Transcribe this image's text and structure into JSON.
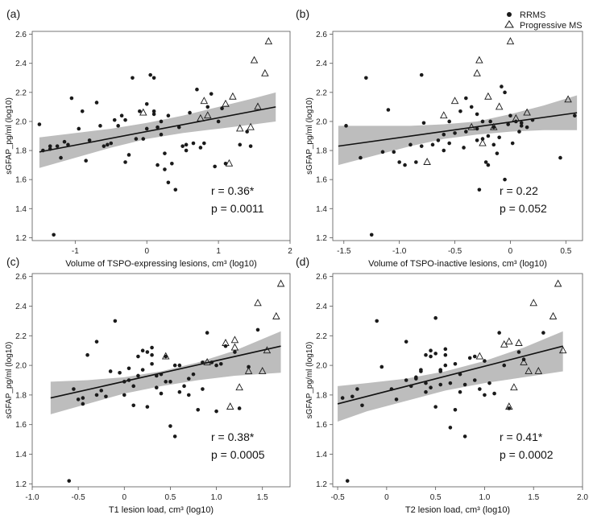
{
  "legend": {
    "position": "top-right",
    "entries": [
      {
        "label": "RRMS",
        "marker": "filled-circle"
      },
      {
        "label": "Progressive MS",
        "marker": "open-triangle"
      }
    ]
  },
  "chart_data": [
    {
      "type": "scatter",
      "panel": "(a)",
      "xlabel": "Volume of TSPO-expressing lesions, cm³ (log10)",
      "ylabel": "sGFAP_pg/ml (log10)",
      "xlim": [
        -1.6,
        2.0
      ],
      "ylim": [
        1.18,
        2.62
      ],
      "xticks": [
        "-1",
        "0",
        "1",
        "2"
      ],
      "xtick_values": [
        -1,
        0,
        1,
        2
      ],
      "yticks": [
        "1.2",
        "1.4",
        "1.6",
        "1.8",
        "2.0",
        "2.2",
        "2.4",
        "2.6"
      ],
      "ytick_values": [
        1.2,
        1.4,
        1.6,
        1.8,
        2.0,
        2.2,
        2.4,
        2.6
      ],
      "fit": {
        "x": [
          -1.5,
          1.8
        ],
        "y": [
          1.79,
          2.1
        ]
      },
      "band": {
        "x": [
          -1.5,
          -1.0,
          -0.5,
          0.0,
          0.5,
          1.0,
          1.5,
          1.8
        ],
        "upper": [
          1.89,
          1.92,
          1.95,
          1.99,
          2.04,
          2.1,
          2.16,
          2.2
        ],
        "lower": [
          1.68,
          1.75,
          1.82,
          1.88,
          1.92,
          1.95,
          1.98,
          2.0
        ]
      },
      "annotation": {
        "r": "r = 0.36*",
        "p": "p = 0.0011"
      },
      "series": [
        {
          "name": "RRMS",
          "marker": "dot",
          "x": [
            -1.5,
            -1.45,
            -1.35,
            -1.3,
            -1.25,
            -1.2,
            -1.15,
            -1.1,
            -1.05,
            -0.95,
            -0.9,
            -0.85,
            -0.8,
            -0.7,
            -0.65,
            -0.6,
            -0.55,
            -0.5,
            -0.45,
            -0.4,
            -0.35,
            -0.3,
            -0.25,
            -0.2,
            -0.15,
            -0.1,
            0.0,
            0.05,
            0.1,
            0.1,
            0.15,
            0.2,
            0.25,
            0.25,
            0.3,
            0.35,
            0.4,
            0.45,
            0.5,
            0.55,
            0.6,
            0.65,
            0.7,
            0.75,
            0.8,
            0.85,
            0.9,
            0.95,
            1.0,
            1.05,
            1.1,
            1.3,
            1.4,
            1.45,
            0.0,
            0.2,
            -0.3,
            0.3,
            0.1,
            -0.05,
            0.55,
            0.15,
            -1.35
          ],
          "y": [
            1.98,
            1.8,
            1.81,
            1.22,
            1.83,
            1.75,
            1.86,
            1.84,
            2.16,
            1.95,
            2.07,
            1.73,
            1.87,
            2.13,
            1.97,
            1.83,
            1.84,
            1.85,
            2.01,
            1.97,
            2.04,
            1.72,
            1.77,
            2.3,
            1.88,
            2.07,
            2.12,
            2.32,
            2.3,
            2.05,
            1.7,
            1.91,
            1.78,
            1.67,
            1.58,
            1.71,
            1.53,
            1.96,
            1.83,
            1.84,
            2.06,
            1.85,
            2.22,
            1.82,
            1.85,
            2.1,
            2.19,
            1.69,
            2.0,
            2.09,
            1.71,
            1.84,
            1.93,
            1.83,
            1.95,
            2.0,
            2.01,
            2.04,
            2.07,
            1.88,
            1.8,
            1.96,
            1.83
          ]
        },
        {
          "name": "Progressive MS",
          "marker": "triangle",
          "x": [
            -0.05,
            0.75,
            0.8,
            0.85,
            1.1,
            1.15,
            1.2,
            1.3,
            1.45,
            1.5,
            1.55,
            1.65,
            1.7
          ],
          "y": [
            2.06,
            2.02,
            2.14,
            2.04,
            2.12,
            1.71,
            2.17,
            1.95,
            1.96,
            2.42,
            2.1,
            2.33,
            2.55
          ]
        }
      ]
    },
    {
      "type": "scatter",
      "panel": "(b)",
      "xlabel": "Volume of TSPO-inactive lesions, cm³ (log10)",
      "ylabel": "sGFAP_pg/ml (log10)",
      "xlim": [
        -1.6,
        0.65
      ],
      "ylim": [
        1.18,
        2.62
      ],
      "xticks": [
        "-1.5",
        "-1.0",
        "-0.5",
        "0",
        "0.5"
      ],
      "xtick_values": [
        -1.5,
        -1.0,
        -0.5,
        0,
        0.5
      ],
      "yticks": [
        "1.2",
        "1.4",
        "1.6",
        "1.8",
        "2.0",
        "2.2",
        "2.4",
        "2.6"
      ],
      "ytick_values": [
        1.2,
        1.4,
        1.6,
        1.8,
        2.0,
        2.2,
        2.4,
        2.6
      ],
      "fit": {
        "x": [
          -1.55,
          0.6
        ],
        "y": [
          1.83,
          2.06
        ]
      },
      "band": {
        "x": [
          -1.55,
          -1.2,
          -0.9,
          -0.6,
          -0.3,
          0.0,
          0.3,
          0.6
        ],
        "upper": [
          1.97,
          1.97,
          1.97,
          1.98,
          2.0,
          2.05,
          2.11,
          2.18
        ],
        "lower": [
          1.7,
          1.77,
          1.83,
          1.88,
          1.91,
          1.93,
          1.94,
          1.94
        ]
      },
      "annotation": {
        "r": "r = 0.22",
        "p": "p = 0.052"
      },
      "series": [
        {
          "name": "RRMS",
          "marker": "dot",
          "x": [
            -1.48,
            -1.35,
            -1.3,
            -1.25,
            -1.15,
            -1.1,
            -1.05,
            -1.0,
            -0.95,
            -0.9,
            -0.85,
            -0.8,
            -0.78,
            -0.7,
            -0.65,
            -0.6,
            -0.55,
            -0.5,
            -0.45,
            -0.42,
            -0.4,
            -0.35,
            -0.3,
            -0.28,
            -0.25,
            -0.22,
            -0.2,
            -0.18,
            -0.15,
            -0.12,
            -0.1,
            -0.08,
            -0.05,
            -0.02,
            0.0,
            0.02,
            0.05,
            0.08,
            0.1,
            0.15,
            0.2,
            0.45,
            0.58,
            -0.3,
            -0.25,
            -0.15,
            -0.4,
            -0.6,
            -0.3,
            -0.05,
            0.1,
            -0.55,
            -0.8,
            -0.2
          ],
          "y": [
            1.97,
            1.75,
            2.3,
            1.22,
            1.79,
            2.08,
            1.79,
            1.72,
            1.7,
            1.84,
            1.72,
            2.32,
            1.99,
            1.84,
            1.87,
            1.8,
            2.0,
            1.92,
            2.07,
            1.82,
            1.93,
            2.1,
            2.05,
            1.53,
            1.88,
            1.72,
            1.7,
            2.0,
            1.84,
            1.78,
            1.89,
            2.24,
            1.6,
            1.98,
            2.04,
            1.85,
            2.0,
            1.93,
            1.99,
            1.96,
            2.01,
            1.75,
            2.04,
            1.87,
            2.0,
            1.96,
            2.16,
            1.91,
            1.95,
            2.2,
            1.97,
            1.85,
            1.83,
            1.9
          ]
        },
        {
          "name": "Progressive MS",
          "marker": "triangle",
          "x": [
            -0.75,
            -0.6,
            -0.5,
            -0.35,
            -0.3,
            -0.28,
            -0.25,
            -0.2,
            -0.15,
            -0.1,
            0.0,
            0.05,
            0.15,
            0.52
          ],
          "y": [
            1.72,
            2.04,
            2.14,
            1.96,
            2.33,
            2.42,
            1.85,
            2.17,
            1.96,
            2.1,
            2.55,
            2.02,
            2.06,
            2.15
          ]
        }
      ]
    },
    {
      "type": "scatter",
      "panel": "(c)",
      "xlabel": "T1 lesion load, cm³ (log10)",
      "ylabel": "sGFAP_pg/ml (log10)",
      "xlim": [
        -1.0,
        1.8
      ],
      "ylim": [
        1.18,
        2.62
      ],
      "xticks": [
        "-1.0",
        "-0.5",
        "0",
        "0.5",
        "1.0",
        "1.5"
      ],
      "xtick_values": [
        -1.0,
        -0.5,
        0,
        0.5,
        1.0,
        1.5
      ],
      "yticks": [
        "1.2",
        "1.4",
        "1.6",
        "1.8",
        "2.0",
        "2.2",
        "2.4",
        "2.6"
      ],
      "ytick_values": [
        1.2,
        1.4,
        1.6,
        1.8,
        2.0,
        2.2,
        2.4,
        2.6
      ],
      "fit": {
        "x": [
          -0.8,
          1.7
        ],
        "y": [
          1.78,
          2.13
        ]
      },
      "band": {
        "x": [
          -0.8,
          -0.4,
          0.0,
          0.4,
          0.8,
          1.2,
          1.7
        ],
        "upper": [
          1.89,
          1.9,
          1.92,
          1.96,
          2.02,
          2.1,
          2.23
        ],
        "lower": [
          1.67,
          1.74,
          1.81,
          1.86,
          1.9,
          1.93,
          1.95
        ]
      },
      "annotation": {
        "r": "r = 0.38*",
        "p": "p = 0.0005"
      },
      "series": [
        {
          "name": "RRMS",
          "marker": "dot",
          "x": [
            -0.6,
            -0.55,
            -0.45,
            -0.45,
            -0.4,
            -0.3,
            -0.25,
            -0.2,
            -0.15,
            -0.1,
            -0.05,
            0.0,
            0.05,
            0.1,
            0.15,
            0.2,
            0.25,
            0.3,
            0.35,
            0.4,
            0.45,
            0.5,
            0.55,
            0.6,
            0.65,
            0.7,
            0.75,
            0.8,
            0.85,
            0.9,
            0.95,
            1.0,
            1.05,
            1.1,
            1.2,
            1.25,
            1.35,
            1.45,
            -0.5,
            0.0,
            0.1,
            0.3,
            0.2,
            0.35,
            0.45,
            0.6,
            0.5,
            0.7,
            0.15,
            0.25,
            0.4,
            0.55,
            -0.3,
            0.05,
            0.85,
            1.0,
            0.3
          ],
          "y": [
            1.22,
            1.84,
            1.74,
            1.78,
            2.07,
            2.16,
            1.83,
            1.79,
            1.96,
            2.3,
            1.95,
            1.8,
            1.9,
            1.73,
            1.93,
            2.1,
            1.72,
            2.07,
            1.85,
            1.81,
            1.89,
            1.59,
            1.52,
            2.0,
            1.86,
            1.8,
            1.94,
            1.7,
            1.84,
            2.22,
            2.02,
            1.69,
            2.01,
            2.13,
            2.09,
            1.71,
            1.99,
            2.24,
            1.77,
            1.89,
            1.86,
            2.01,
            1.97,
            1.93,
            2.06,
            1.82,
            1.89,
            1.91,
            2.06,
            2.09,
            1.94,
            2.0,
            1.8,
            1.98,
            2.02,
            2.0,
            2.12
          ]
        },
        {
          "name": "Progressive MS",
          "marker": "triangle",
          "x": [
            0.45,
            0.9,
            1.1,
            1.15,
            1.2,
            1.25,
            1.35,
            1.45,
            1.5,
            1.55,
            1.65,
            1.7,
            1.2
          ],
          "y": [
            2.06,
            2.02,
            2.15,
            1.72,
            2.17,
            1.85,
            1.96,
            2.42,
            1.96,
            2.1,
            2.33,
            2.55,
            2.12
          ]
        }
      ]
    },
    {
      "type": "scatter",
      "panel": "(d)",
      "xlabel": "T2 lesion load, cm³ (log10)",
      "ylabel": "sGFAP_pg/ml (log10)",
      "xlim": [
        -0.55,
        2.0
      ],
      "ylim": [
        1.18,
        2.62
      ],
      "xticks": [
        "-0.5",
        "0",
        "0.5",
        "1.0",
        "1.5",
        "2.0"
      ],
      "xtick_values": [
        -0.5,
        0,
        0.5,
        1.0,
        1.5,
        2.0
      ],
      "yticks": [
        "1.2",
        "1.4",
        "1.6",
        "1.8",
        "2.0",
        "2.2",
        "2.4",
        "2.6"
      ],
      "ytick_values": [
        1.2,
        1.4,
        1.6,
        1.8,
        2.0,
        2.2,
        2.4,
        2.6
      ],
      "fit": {
        "x": [
          -0.5,
          1.8
        ],
        "y": [
          1.74,
          2.13
        ]
      },
      "band": {
        "x": [
          -0.5,
          -0.2,
          0.2,
          0.6,
          1.0,
          1.4,
          1.8
        ],
        "upper": [
          1.86,
          1.88,
          1.91,
          1.96,
          2.03,
          2.12,
          2.23
        ],
        "lower": [
          1.62,
          1.69,
          1.76,
          1.83,
          1.88,
          1.92,
          1.96
        ]
      },
      "annotation": {
        "r": "r = 0.41*",
        "p": "p = 0.0002"
      },
      "series": [
        {
          "name": "RRMS",
          "marker": "dot",
          "x": [
            -0.45,
            -0.4,
            -0.35,
            -0.3,
            -0.25,
            -0.1,
            -0.05,
            0.05,
            0.1,
            0.2,
            0.25,
            0.3,
            0.35,
            0.4,
            0.4,
            0.45,
            0.5,
            0.55,
            0.6,
            0.65,
            0.7,
            0.75,
            0.8,
            0.85,
            0.9,
            0.95,
            1.0,
            1.05,
            1.1,
            1.15,
            1.2,
            1.25,
            1.35,
            1.4,
            1.6,
            0.5,
            0.55,
            0.6,
            0.7,
            0.3,
            0.45,
            0.5,
            0.65,
            0.8,
            0.2,
            0.35,
            0.9,
            1.0,
            0.55,
            0.4,
            0.6,
            0.75,
            0.45
          ],
          "y": [
            1.78,
            1.22,
            1.79,
            1.84,
            1.73,
            2.3,
            1.99,
            1.84,
            1.77,
            2.16,
            1.86,
            1.91,
            1.97,
            1.82,
            2.07,
            1.85,
            1.72,
            1.96,
            2.0,
            1.58,
            1.7,
            1.82,
            1.52,
            2.05,
            1.9,
            1.84,
            2.03,
            1.88,
            1.81,
            2.22,
            2.0,
            1.71,
            2.09,
            2.04,
            2.22,
            2.08,
            1.87,
            2.11,
            2.01,
            1.92,
            2.1,
            2.32,
            1.88,
            1.87,
            1.9,
            1.96,
            2.06,
            1.8,
            1.97,
            1.88,
            2.07,
            1.94,
            2.06
          ]
        },
        {
          "name": "Progressive MS",
          "marker": "triangle",
          "x": [
            0.95,
            1.2,
            1.25,
            1.3,
            1.35,
            1.4,
            1.45,
            1.5,
            1.55,
            1.7,
            1.75,
            1.8,
            1.25
          ],
          "y": [
            2.06,
            2.14,
            1.72,
            1.85,
            2.15,
            2.02,
            1.96,
            2.42,
            1.96,
            2.33,
            2.55,
            2.1,
            2.16
          ]
        }
      ]
    }
  ]
}
